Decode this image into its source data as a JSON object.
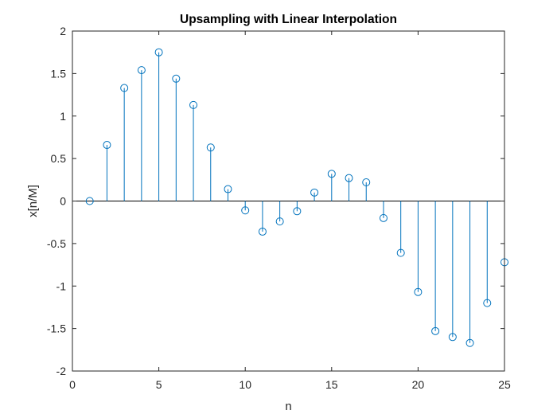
{
  "chart_data": {
    "type": "stem",
    "title": "Upsampling with Linear Interpolation",
    "xlabel": "n",
    "ylabel": "x[n/M]",
    "xlim": [
      0,
      25
    ],
    "ylim": [
      -2,
      2
    ],
    "xticks": [
      0,
      5,
      10,
      15,
      20,
      25
    ],
    "yticks": [
      2,
      1.5,
      1,
      0.5,
      0,
      -0.5,
      -1,
      -1.5,
      -2
    ],
    "ytick_labels": [
      "2",
      "1.5",
      "1",
      "0.5",
      "0",
      "-0.5",
      "-1",
      "-1.5",
      "-2"
    ],
    "grid": false,
    "color": "#0072BD",
    "x": [
      1,
      2,
      3,
      4,
      5,
      6,
      7,
      8,
      9,
      10,
      11,
      12,
      13,
      14,
      15,
      16,
      17,
      18,
      19,
      20,
      21,
      22,
      23,
      24,
      25
    ],
    "y": [
      0,
      0.66,
      1.33,
      1.54,
      1.75,
      1.44,
      1.13,
      0.63,
      0.14,
      -0.11,
      -0.36,
      -0.24,
      -0.12,
      0.1,
      0.32,
      0.27,
      0.22,
      -0.2,
      -0.61,
      -1.07,
      -1.53,
      -1.6,
      -1.67,
      -1.2,
      -0.72
    ]
  }
}
